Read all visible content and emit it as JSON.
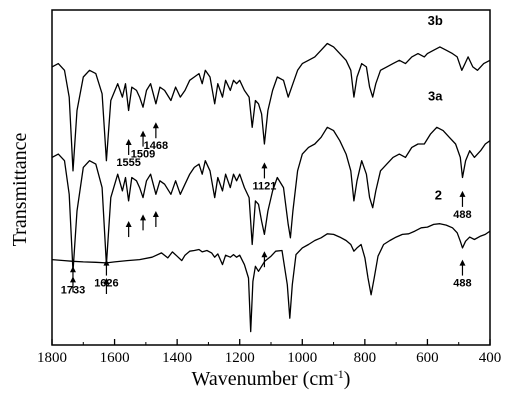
{
  "chart_data": {
    "type": "line",
    "xlabel": "Wavenumber (cm",
    "xlabel_sup": "-1",
    "xlabel_close": ")",
    "ylabel": "Transmittance",
    "xlim": [
      1800,
      400
    ],
    "x_reversed": true,
    "x_ticks": [
      "1800",
      "1600",
      "1400",
      "1200",
      "1000",
      "800",
      "600",
      "400"
    ],
    "y_ticks_shown": false,
    "grid": false,
    "legend": "none",
    "series": [
      {
        "name": "3b",
        "baseline": 0.82,
        "points": [
          [
            1800,
            0.83
          ],
          [
            1780,
            0.84
          ],
          [
            1760,
            0.82
          ],
          [
            1745,
            0.74
          ],
          [
            1733,
            0.52
          ],
          [
            1720,
            0.7
          ],
          [
            1700,
            0.8
          ],
          [
            1680,
            0.82
          ],
          [
            1660,
            0.81
          ],
          [
            1640,
            0.75
          ],
          [
            1626,
            0.55
          ],
          [
            1612,
            0.73
          ],
          [
            1590,
            0.78
          ],
          [
            1575,
            0.74
          ],
          [
            1565,
            0.78
          ],
          [
            1555,
            0.7
          ],
          [
            1545,
            0.77
          ],
          [
            1530,
            0.76
          ],
          [
            1520,
            0.74
          ],
          [
            1509,
            0.71
          ],
          [
            1498,
            0.76
          ],
          [
            1485,
            0.78
          ],
          [
            1468,
            0.72
          ],
          [
            1455,
            0.77
          ],
          [
            1440,
            0.76
          ],
          [
            1420,
            0.73
          ],
          [
            1405,
            0.77
          ],
          [
            1390,
            0.74
          ],
          [
            1375,
            0.76
          ],
          [
            1360,
            0.79
          ],
          [
            1345,
            0.8
          ],
          [
            1330,
            0.81
          ],
          [
            1320,
            0.78
          ],
          [
            1310,
            0.82
          ],
          [
            1295,
            0.8
          ],
          [
            1280,
            0.72
          ],
          [
            1270,
            0.78
          ],
          [
            1255,
            0.74
          ],
          [
            1245,
            0.79
          ],
          [
            1230,
            0.76
          ],
          [
            1220,
            0.79
          ],
          [
            1210,
            0.78
          ],
          [
            1200,
            0.79
          ],
          [
            1185,
            0.76
          ],
          [
            1170,
            0.74
          ],
          [
            1160,
            0.65
          ],
          [
            1150,
            0.73
          ],
          [
            1140,
            0.72
          ],
          [
            1130,
            0.69
          ],
          [
            1121,
            0.6
          ],
          [
            1110,
            0.7
          ],
          [
            1095,
            0.76
          ],
          [
            1080,
            0.8
          ],
          [
            1060,
            0.79
          ],
          [
            1045,
            0.74
          ],
          [
            1030,
            0.78
          ],
          [
            1015,
            0.82
          ],
          [
            1000,
            0.84
          ],
          [
            980,
            0.85
          ],
          [
            960,
            0.86
          ],
          [
            940,
            0.88
          ],
          [
            920,
            0.9
          ],
          [
            900,
            0.89
          ],
          [
            880,
            0.87
          ],
          [
            860,
            0.85
          ],
          [
            845,
            0.82
          ],
          [
            835,
            0.74
          ],
          [
            825,
            0.8
          ],
          [
            810,
            0.84
          ],
          [
            795,
            0.83
          ],
          [
            785,
            0.77
          ],
          [
            775,
            0.74
          ],
          [
            765,
            0.78
          ],
          [
            750,
            0.82
          ],
          [
            730,
            0.83
          ],
          [
            710,
            0.84
          ],
          [
            690,
            0.85
          ],
          [
            670,
            0.84
          ],
          [
            650,
            0.86
          ],
          [
            630,
            0.87
          ],
          [
            610,
            0.86
          ],
          [
            600,
            0.87
          ],
          [
            580,
            0.88
          ],
          [
            560,
            0.89
          ],
          [
            540,
            0.88
          ],
          [
            520,
            0.87
          ],
          [
            505,
            0.86
          ],
          [
            490,
            0.82
          ],
          [
            480,
            0.84
          ],
          [
            470,
            0.86
          ],
          [
            455,
            0.83
          ],
          [
            440,
            0.82
          ],
          [
            420,
            0.84
          ],
          [
            400,
            0.85
          ]
        ]
      },
      {
        "name": "3a",
        "baseline": 0.55,
        "points": [
          [
            1800,
            0.56
          ],
          [
            1780,
            0.57
          ],
          [
            1760,
            0.55
          ],
          [
            1745,
            0.45
          ],
          [
            1733,
            0.22
          ],
          [
            1720,
            0.4
          ],
          [
            1700,
            0.53
          ],
          [
            1680,
            0.55
          ],
          [
            1660,
            0.54
          ],
          [
            1640,
            0.47
          ],
          [
            1626,
            0.24
          ],
          [
            1612,
            0.44
          ],
          [
            1590,
            0.51
          ],
          [
            1575,
            0.46
          ],
          [
            1565,
            0.5
          ],
          [
            1555,
            0.43
          ],
          [
            1545,
            0.5
          ],
          [
            1530,
            0.49
          ],
          [
            1520,
            0.47
          ],
          [
            1509,
            0.44
          ],
          [
            1498,
            0.49
          ],
          [
            1485,
            0.51
          ],
          [
            1468,
            0.45
          ],
          [
            1455,
            0.49
          ],
          [
            1440,
            0.48
          ],
          [
            1420,
            0.45
          ],
          [
            1405,
            0.49
          ],
          [
            1390,
            0.45
          ],
          [
            1375,
            0.48
          ],
          [
            1360,
            0.51
          ],
          [
            1345,
            0.53
          ],
          [
            1330,
            0.54
          ],
          [
            1320,
            0.51
          ],
          [
            1310,
            0.55
          ],
          [
            1295,
            0.52
          ],
          [
            1280,
            0.44
          ],
          [
            1270,
            0.5
          ],
          [
            1255,
            0.46
          ],
          [
            1245,
            0.51
          ],
          [
            1230,
            0.47
          ],
          [
            1220,
            0.51
          ],
          [
            1210,
            0.49
          ],
          [
            1200,
            0.51
          ],
          [
            1185,
            0.47
          ],
          [
            1170,
            0.44
          ],
          [
            1160,
            0.3
          ],
          [
            1150,
            0.43
          ],
          [
            1140,
            0.42
          ],
          [
            1130,
            0.37
          ],
          [
            1121,
            0.33
          ],
          [
            1110,
            0.4
          ],
          [
            1095,
            0.46
          ],
          [
            1080,
            0.5
          ],
          [
            1060,
            0.47
          ],
          [
            1045,
            0.36
          ],
          [
            1038,
            0.32
          ],
          [
            1030,
            0.4
          ],
          [
            1015,
            0.52
          ],
          [
            1000,
            0.57
          ],
          [
            980,
            0.59
          ],
          [
            960,
            0.6
          ],
          [
            940,
            0.62
          ],
          [
            920,
            0.65
          ],
          [
            900,
            0.64
          ],
          [
            880,
            0.61
          ],
          [
            860,
            0.57
          ],
          [
            845,
            0.52
          ],
          [
            835,
            0.43
          ],
          [
            825,
            0.49
          ],
          [
            810,
            0.55
          ],
          [
            795,
            0.51
          ],
          [
            785,
            0.44
          ],
          [
            775,
            0.41
          ],
          [
            765,
            0.46
          ],
          [
            750,
            0.52
          ],
          [
            730,
            0.54
          ],
          [
            710,
            0.56
          ],
          [
            690,
            0.57
          ],
          [
            670,
            0.56
          ],
          [
            650,
            0.59
          ],
          [
            630,
            0.6
          ],
          [
            610,
            0.6
          ],
          [
            590,
            0.63
          ],
          [
            570,
            0.65
          ],
          [
            550,
            0.64
          ],
          [
            530,
            0.62
          ],
          [
            510,
            0.6
          ],
          [
            495,
            0.56
          ],
          [
            488,
            0.5
          ],
          [
            478,
            0.55
          ],
          [
            465,
            0.58
          ],
          [
            450,
            0.56
          ],
          [
            430,
            0.58
          ],
          [
            415,
            0.6
          ],
          [
            400,
            0.61
          ]
        ]
      },
      {
        "name": "2",
        "baseline": 0.26,
        "points": [
          [
            1800,
            0.255
          ],
          [
            1760,
            0.252
          ],
          [
            1733,
            0.25
          ],
          [
            1700,
            0.248
          ],
          [
            1660,
            0.247
          ],
          [
            1626,
            0.245
          ],
          [
            1600,
            0.248
          ],
          [
            1560,
            0.252
          ],
          [
            1520,
            0.255
          ],
          [
            1480,
            0.262
          ],
          [
            1450,
            0.275
          ],
          [
            1430,
            0.26
          ],
          [
            1415,
            0.278
          ],
          [
            1400,
            0.265
          ],
          [
            1385,
            0.252
          ],
          [
            1375,
            0.268
          ],
          [
            1360,
            0.28
          ],
          [
            1345,
            0.282
          ],
          [
            1330,
            0.285
          ],
          [
            1320,
            0.278
          ],
          [
            1305,
            0.282
          ],
          [
            1290,
            0.275
          ],
          [
            1280,
            0.262
          ],
          [
            1270,
            0.272
          ],
          [
            1255,
            0.24
          ],
          [
            1245,
            0.268
          ],
          [
            1230,
            0.262
          ],
          [
            1220,
            0.27
          ],
          [
            1210,
            0.262
          ],
          [
            1200,
            0.268
          ],
          [
            1185,
            0.24
          ],
          [
            1172,
            0.2
          ],
          [
            1165,
            0.04
          ],
          [
            1158,
            0.19
          ],
          [
            1150,
            0.235
          ],
          [
            1140,
            0.22
          ],
          [
            1130,
            0.235
          ],
          [
            1120,
            0.25
          ],
          [
            1100,
            0.265
          ],
          [
            1085,
            0.28
          ],
          [
            1065,
            0.282
          ],
          [
            1048,
            0.18
          ],
          [
            1040,
            0.08
          ],
          [
            1032,
            0.18
          ],
          [
            1020,
            0.27
          ],
          [
            1000,
            0.29
          ],
          [
            980,
            0.3
          ],
          [
            960,
            0.312
          ],
          [
            940,
            0.32
          ],
          [
            920,
            0.332
          ],
          [
            900,
            0.33
          ],
          [
            880,
            0.322
          ],
          [
            860,
            0.312
          ],
          [
            845,
            0.3
          ],
          [
            835,
            0.28
          ],
          [
            825,
            0.29
          ],
          [
            812,
            0.3
          ],
          [
            800,
            0.26
          ],
          [
            790,
            0.2
          ],
          [
            780,
            0.15
          ],
          [
            770,
            0.2
          ],
          [
            758,
            0.265
          ],
          [
            740,
            0.3
          ],
          [
            720,
            0.312
          ],
          [
            700,
            0.322
          ],
          [
            680,
            0.33
          ],
          [
            660,
            0.332
          ],
          [
            640,
            0.34
          ],
          [
            620,
            0.35
          ],
          [
            600,
            0.352
          ],
          [
            580,
            0.36
          ],
          [
            560,
            0.362
          ],
          [
            540,
            0.358
          ],
          [
            520,
            0.35
          ],
          [
            505,
            0.335
          ],
          [
            495,
            0.31
          ],
          [
            488,
            0.29
          ],
          [
            478,
            0.31
          ],
          [
            465,
            0.322
          ],
          [
            450,
            0.315
          ],
          [
            430,
            0.325
          ],
          [
            415,
            0.33
          ],
          [
            400,
            0.34
          ]
        ]
      }
    ],
    "series_labels": [
      {
        "text": "3b",
        "x": 575,
        "y": 0.955
      },
      {
        "text": "3a",
        "x": 575,
        "y": 0.73
      },
      {
        "text": "2",
        "x": 565,
        "y": 0.435
      }
    ],
    "peak_annotations": [
      {
        "label": "1733",
        "x": 1733,
        "series": "3a",
        "arrow_tip": 0.235,
        "label_below": true
      },
      {
        "label": "1626",
        "x": 1626,
        "series": "3a",
        "arrow_tip": 0.255,
        "label_below": true
      },
      {
        "label": "1555",
        "x": 1555,
        "series": "3b",
        "arrow_tip": 0.615,
        "label_below": true
      },
      {
        "label": "1509",
        "x": 1509,
        "series": "3b",
        "arrow_tip": 0.64,
        "label_below": true
      },
      {
        "label": "1468",
        "x": 1468,
        "series": "3b",
        "arrow_tip": 0.665,
        "label_below": true
      },
      {
        "label": "1121",
        "x": 1121,
        "series": "3b",
        "arrow_tip": 0.545,
        "label_below": true
      },
      {
        "label": "488",
        "x": 488,
        "series": "3a",
        "arrow_tip": 0.46,
        "label_below": true
      },
      {
        "label": "488",
        "x": 488,
        "series": "2",
        "arrow_tip": 0.255,
        "label_below": true
      }
    ],
    "unlabeled_arrows": [
      {
        "x": 1733,
        "series": "2",
        "arrow_tip": 0.205
      },
      {
        "x": 1626,
        "series": "2",
        "arrow_tip": 0.2
      },
      {
        "x": 1555,
        "series": "3a",
        "arrow_tip": 0.37
      },
      {
        "x": 1509,
        "series": "3a",
        "arrow_tip": 0.39
      },
      {
        "x": 1468,
        "series": "3a",
        "arrow_tip": 0.4
      },
      {
        "x": 1121,
        "series": "3a",
        "arrow_tip": 0.28
      }
    ]
  }
}
